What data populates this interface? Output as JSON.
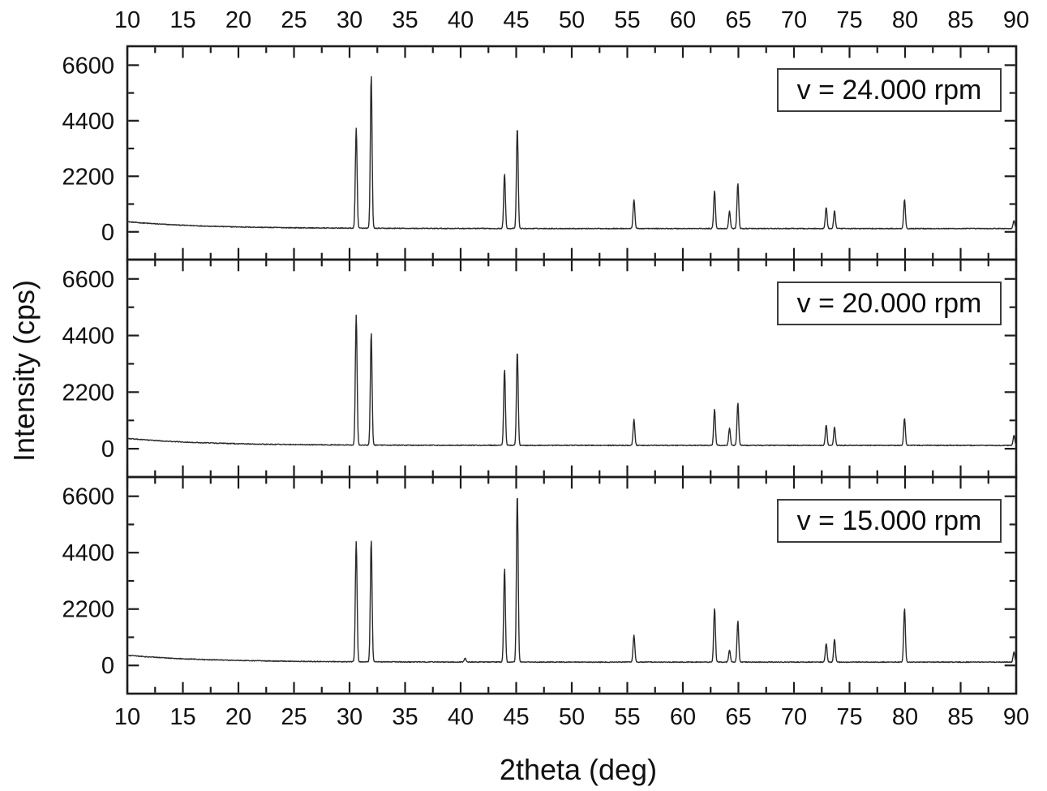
{
  "figure": {
    "xlabel": "2theta (deg)",
    "ylabel": "Intensity (cps)",
    "background": "#ffffff",
    "frame_color": "#1c1c1c",
    "line_color": "#2a2a2a",
    "x_axis": {
      "min": 10,
      "max": 90,
      "major_ticks": [
        10,
        15,
        20,
        25,
        30,
        35,
        40,
        45,
        50,
        55,
        60,
        65,
        70,
        75,
        80,
        85,
        90
      ],
      "minor_step": 2.5,
      "labels_shown_top": true,
      "labels_shown_bottom": true
    },
    "y_axis": {
      "min": -1100,
      "max": 7350,
      "major_ticks": [
        0,
        2200,
        4400,
        6600
      ],
      "minor_ticks": [
        1100,
        3300,
        5500
      ],
      "grid": false
    },
    "legend_position": "top-right-inside-each-panel"
  },
  "chart_data": [
    {
      "type": "line",
      "panel": "top",
      "legend": "v = 24.000 rpm",
      "x_range": [
        10,
        90
      ],
      "y_ticks": [
        0,
        2200,
        4400,
        6600
      ],
      "baseline_cps": {
        "at_10deg": 400,
        "settled": 130
      },
      "peaks_format": "[two_theta_deg, intensity_cps]",
      "peaks": [
        [
          30.6,
          3950
        ],
        [
          31.95,
          6050
        ],
        [
          43.95,
          2150
        ],
        [
          45.1,
          4000
        ],
        [
          55.6,
          1150
        ],
        [
          62.85,
          1500
        ],
        [
          64.2,
          680
        ],
        [
          64.95,
          1800
        ],
        [
          72.9,
          850
        ],
        [
          73.65,
          700
        ],
        [
          79.95,
          1150
        ],
        [
          89.8,
          320
        ]
      ]
    },
    {
      "type": "line",
      "panel": "middle",
      "legend": "v = 20.000 rpm",
      "x_range": [
        10,
        90
      ],
      "y_ticks": [
        0,
        2200,
        4400,
        6600
      ],
      "baseline_cps": {
        "at_10deg": 400,
        "settled": 130
      },
      "peaks_format": "[two_theta_deg, intensity_cps]",
      "peaks": [
        [
          30.6,
          5050
        ],
        [
          31.95,
          4350
        ],
        [
          43.95,
          2950
        ],
        [
          45.1,
          3650
        ],
        [
          55.6,
          1000
        ],
        [
          62.85,
          1400
        ],
        [
          64.2,
          670
        ],
        [
          64.95,
          1650
        ],
        [
          72.9,
          800
        ],
        [
          73.65,
          700
        ],
        [
          79.95,
          1050
        ],
        [
          89.8,
          380
        ]
      ]
    },
    {
      "type": "line",
      "panel": "bottom",
      "legend": "v = 15.000 rpm",
      "x_range": [
        10,
        90
      ],
      "y_ticks": [
        0,
        2200,
        4400,
        6600
      ],
      "baseline_cps": {
        "at_10deg": 400,
        "settled": 130
      },
      "peaks_format": "[two_theta_deg, intensity_cps]",
      "peaks": [
        [
          30.6,
          4700
        ],
        [
          31.95,
          4750
        ],
        [
          40.4,
          150
        ],
        [
          43.95,
          3650
        ],
        [
          45.1,
          6600
        ],
        [
          55.6,
          1050
        ],
        [
          62.85,
          2100
        ],
        [
          64.2,
          470
        ],
        [
          64.95,
          1600
        ],
        [
          72.9,
          730
        ],
        [
          73.65,
          900
        ],
        [
          79.95,
          2100
        ],
        [
          89.8,
          400
        ]
      ]
    }
  ]
}
